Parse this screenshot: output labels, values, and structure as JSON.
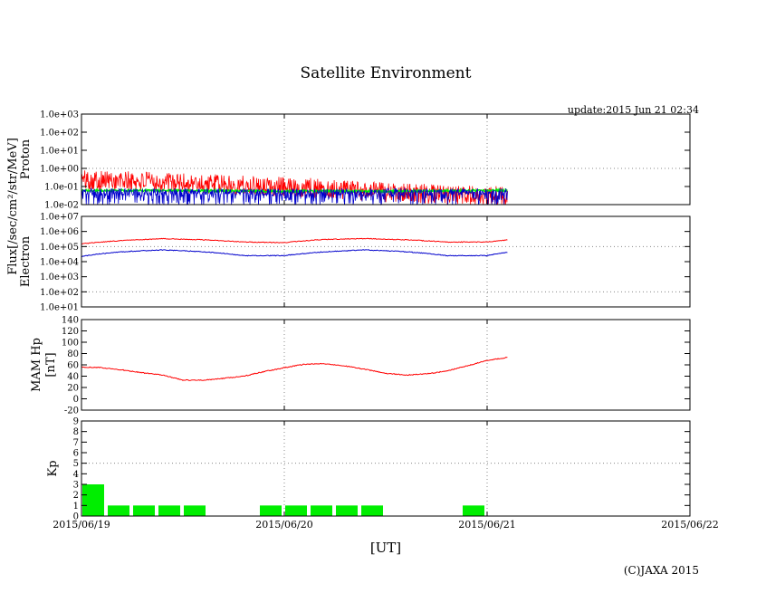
{
  "title": "Satellite Environment",
  "update": "update:2015 Jun 21 02:34",
  "copyright": "(C)JAXA 2015",
  "flux_label": "Flux[/sec/cm²/str/MeV]",
  "chart_data": {
    "type": "line",
    "xlabel": "[UT]",
    "x_ticks": [
      "2015/06/19",
      "2015/06/20",
      "2015/06/21",
      "2015/06/22"
    ],
    "x_range_days": [
      0,
      3
    ],
    "data_end_day": 2.1,
    "colors": {
      "red": "#ff0000",
      "blue": "#0000cc",
      "green": "#00ee00",
      "grid": "#888888"
    },
    "panels": [
      {
        "id": "proton",
        "ylabel": "Proton",
        "scale": "log",
        "ylim": [
          0.01,
          1000
        ],
        "y_ticks": [
          "1.0e+03",
          "1.0e+02",
          "1.0e+01",
          "1.0e+00",
          "1.0e-01",
          "1.0e-02"
        ],
        "gridline_values": [
          1
        ],
        "series": [
          {
            "color": "red",
            "x": [
              0,
              0.25,
              0.5,
              0.75,
              1.0,
              1.25,
              1.5,
              1.75,
              2.0,
              2.1
            ],
            "y": [
              0.4,
              0.32,
              0.26,
              0.2,
              0.16,
              0.12,
              0.08,
              0.06,
              0.05,
              0.05
            ]
          },
          {
            "color": "green",
            "x": [
              0,
              0.5,
              1.0,
              1.5,
              2.0,
              2.1
            ],
            "y": [
              0.06,
              0.06,
              0.055,
              0.055,
              0.06,
              0.06
            ]
          },
          {
            "color": "blue",
            "x": [
              0,
              0.5,
              1.0,
              1.5,
              2.0,
              2.1
            ],
            "y": [
              0.05,
              0.05,
              0.05,
              0.05,
              0.05,
              0.05
            ]
          }
        ]
      },
      {
        "id": "electron",
        "ylabel": "Electron",
        "scale": "log",
        "ylim": [
          10,
          10000000
        ],
        "y_ticks": [
          "1.0e+07",
          "1.0e+06",
          "1.0e+05",
          "1.0e+04",
          "1.0e+03",
          "1.0e+02",
          "1.0e+01"
        ],
        "gridline_values": [
          100000,
          100
        ],
        "series": [
          {
            "color": "red",
            "x": [
              0,
              0.2,
              0.4,
              0.6,
              0.8,
              1.0,
              1.2,
              1.4,
              1.6,
              1.8,
              2.0,
              2.1
            ],
            "y": [
              150000,
              250000,
              330000,
              280000,
              200000,
              180000,
              300000,
              340000,
              280000,
              200000,
              200000,
              270000
            ]
          },
          {
            "color": "blue",
            "x": [
              0,
              0.2,
              0.4,
              0.6,
              0.8,
              1.0,
              1.2,
              1.4,
              1.6,
              1.8,
              2.0,
              2.1
            ],
            "y": [
              22000,
              45000,
              60000,
              45000,
              25000,
              25000,
              45000,
              60000,
              45000,
              25000,
              25000,
              42000
            ]
          }
        ]
      },
      {
        "id": "hp",
        "ylabel": "MAM Hp",
        "ylabel2": "[nT]",
        "scale": "linear",
        "ylim": [
          -20,
          140
        ],
        "y_ticks": [
          "140",
          "120",
          "100",
          "80",
          "60",
          "40",
          "20",
          "0",
          "-20"
        ],
        "series": [
          {
            "color": "red",
            "x": [
              0,
              0.1,
              0.2,
              0.3,
              0.4,
              0.5,
              0.6,
              0.7,
              0.8,
              0.9,
              1.0,
              1.1,
              1.2,
              1.3,
              1.4,
              1.5,
              1.6,
              1.7,
              1.8,
              1.9,
              2.0,
              2.1
            ],
            "y": [
              56,
              55,
              51,
              46,
              42,
              33,
              33,
              36,
              40,
              48,
              55,
              61,
              62,
              58,
              52,
              45,
              42,
              44,
              49,
              58,
              68,
              73
            ]
          }
        ]
      },
      {
        "id": "kp",
        "ylabel": "Kp",
        "scale": "linear",
        "ylim": [
          0,
          9
        ],
        "y_ticks": [
          "9",
          "8",
          "7",
          "6",
          "5",
          "4",
          "3",
          "2",
          "1",
          "0"
        ],
        "gridline_values": [
          5
        ],
        "type": "bar",
        "bar_width_days": 0.125,
        "bars": [
          {
            "x": 0.0,
            "value": 3
          },
          {
            "x": 0.125,
            "value": 1
          },
          {
            "x": 0.25,
            "value": 1
          },
          {
            "x": 0.375,
            "value": 1
          },
          {
            "x": 0.5,
            "value": 1
          },
          {
            "x": 0.625,
            "value": 0
          },
          {
            "x": 0.75,
            "value": 0
          },
          {
            "x": 0.875,
            "value": 1
          },
          {
            "x": 1.0,
            "value": 1
          },
          {
            "x": 1.125,
            "value": 1
          },
          {
            "x": 1.25,
            "value": 1
          },
          {
            "x": 1.375,
            "value": 1
          },
          {
            "x": 1.5,
            "value": 0
          },
          {
            "x": 1.625,
            "value": 0
          },
          {
            "x": 1.75,
            "value": 0
          },
          {
            "x": 1.875,
            "value": 1
          },
          {
            "x": 2.0,
            "value": 0
          }
        ]
      }
    ]
  }
}
